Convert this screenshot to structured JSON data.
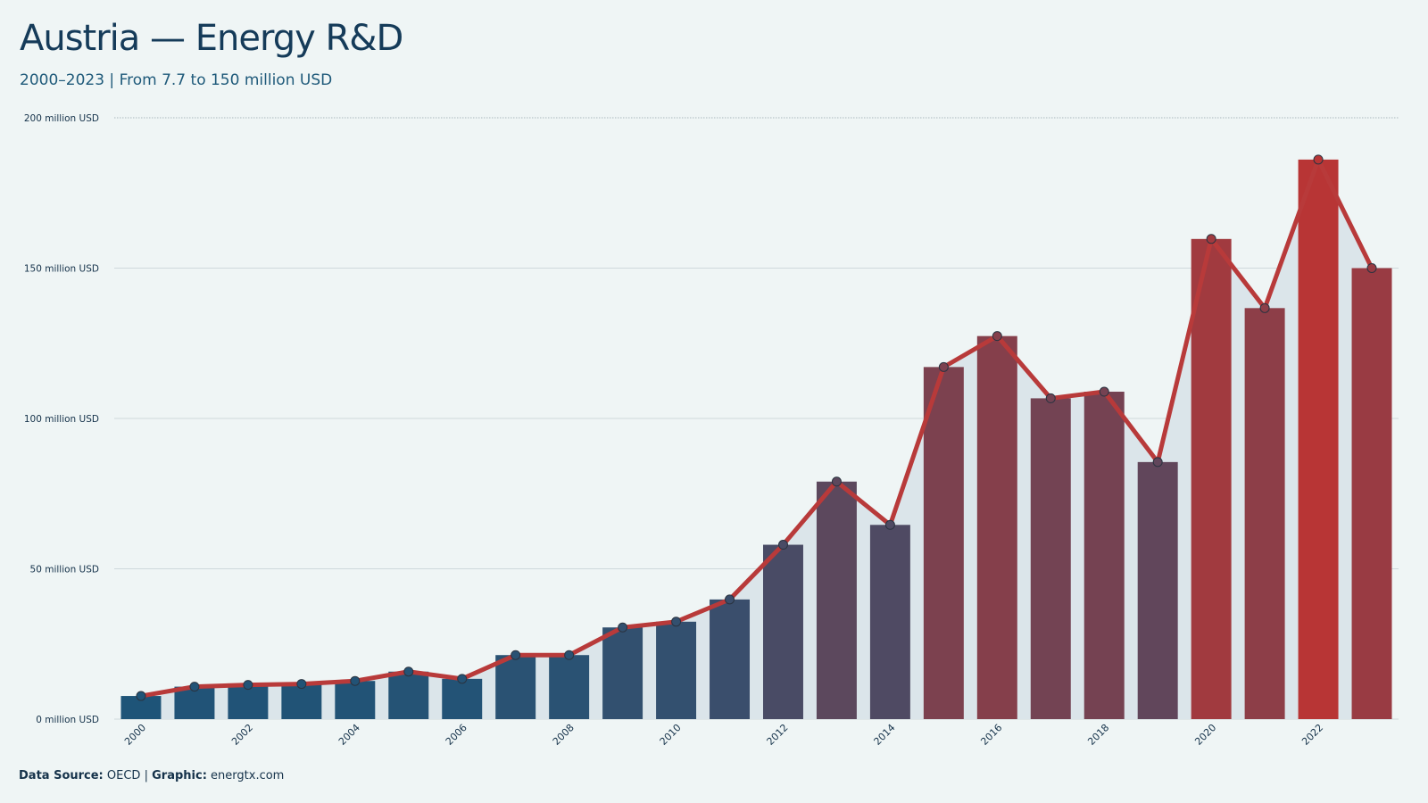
{
  "header": {
    "title": "Austria — Energy R&D",
    "subtitle": "2000–2023 | From 7.7 to 150 million USD"
  },
  "footer": {
    "source_label": "Data Source:",
    "source_value": "OECD",
    "separator": "|",
    "graphic_label": "Graphic:",
    "graphic_value": "energtx.com"
  },
  "colors": {
    "background": "#eff5f5",
    "bar_low": "#1e5478",
    "bar_high": "#b83535",
    "line": "#b83a3a",
    "area": "#dbe5ea",
    "grid": "#cfd9dc",
    "text": "#15324a"
  },
  "chart_data": {
    "type": "bar",
    "categories": [
      "2000",
      "2001",
      "2002",
      "2003",
      "2004",
      "2005",
      "2006",
      "2007",
      "2008",
      "2009",
      "2010",
      "2011",
      "2012",
      "2013",
      "2014",
      "2015",
      "2016",
      "2017",
      "2018",
      "2019",
      "2020",
      "2021",
      "2022",
      "2023"
    ],
    "values": [
      7.7,
      10.8,
      11.4,
      11.7,
      12.7,
      15.8,
      13.4,
      21.3,
      21.3,
      30.5,
      32.4,
      39.8,
      58.0,
      79.0,
      64.6,
      117.1,
      127.4,
      106.7,
      108.9,
      85.5,
      159.7,
      136.7,
      186.1,
      150.0
    ],
    "overlay": {
      "type": "line",
      "values": [
        7.7,
        10.8,
        11.4,
        11.7,
        12.7,
        15.8,
        13.4,
        21.3,
        21.3,
        30.5,
        32.4,
        39.8,
        58.0,
        79.0,
        64.6,
        117.1,
        127.4,
        106.7,
        108.9,
        85.5,
        159.7,
        136.7,
        186.1,
        150.0
      ]
    },
    "xtick_labels": [
      "2000",
      "2002",
      "2004",
      "2006",
      "2008",
      "2010",
      "2012",
      "2014",
      "2016",
      "2018",
      "2020",
      "2022"
    ],
    "ytick_labels": [
      "0 million USD",
      "50 million USD",
      "100 million USD",
      "150 million USD",
      "200 million USD"
    ],
    "yticks": [
      0,
      50,
      100,
      150,
      200
    ],
    "ylim": [
      0,
      200
    ],
    "xlabel": "",
    "ylabel": "",
    "grid": true,
    "legend": false
  }
}
